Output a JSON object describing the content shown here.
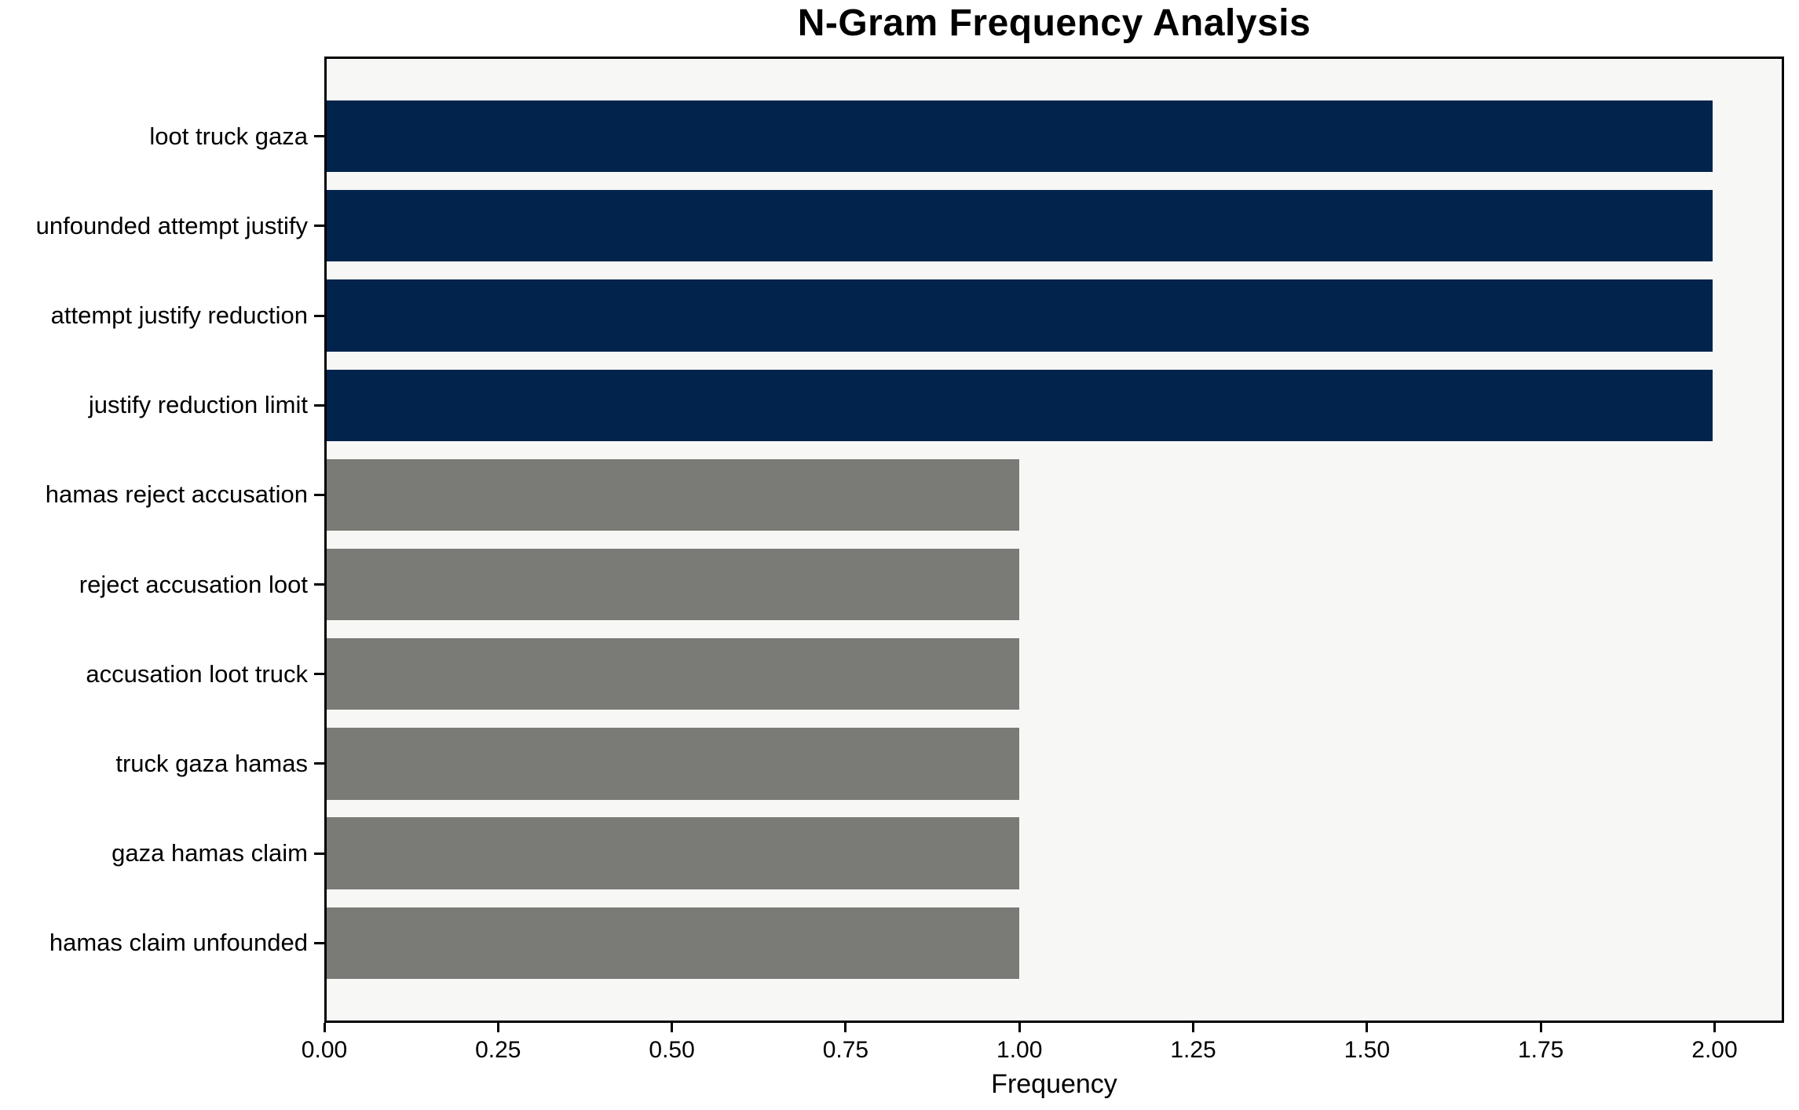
{
  "chart_data": {
    "type": "bar",
    "orientation": "horizontal",
    "title": "N-Gram Frequency Analysis",
    "xlabel": "Frequency",
    "ylabel": "",
    "categories": [
      "loot truck gaza",
      "unfounded attempt justify",
      "attempt justify reduction",
      "justify reduction limit",
      "hamas reject accusation",
      "reject accusation loot",
      "accusation loot truck",
      "truck gaza hamas",
      "gaza hamas claim",
      "hamas claim unfounded"
    ],
    "values": [
      2,
      2,
      2,
      2,
      1,
      1,
      1,
      1,
      1,
      1
    ],
    "bar_colors": [
      "#02234c",
      "#02234c",
      "#02234c",
      "#02234c",
      "#7a7a76",
      "#7a7a76",
      "#7a7a76",
      "#7a7a76",
      "#7a7a76",
      "#7a7a76"
    ],
    "xlim": [
      0,
      2.1
    ],
    "x_ticks": [
      {
        "value": 0.0,
        "label": "0.00"
      },
      {
        "value": 0.25,
        "label": "0.25"
      },
      {
        "value": 0.5,
        "label": "0.50"
      },
      {
        "value": 0.75,
        "label": "0.75"
      },
      {
        "value": 1.0,
        "label": "1.00"
      },
      {
        "value": 1.25,
        "label": "1.25"
      },
      {
        "value": 1.5,
        "label": "1.50"
      },
      {
        "value": 1.75,
        "label": "1.75"
      },
      {
        "value": 2.0,
        "label": "2.00"
      }
    ],
    "grid": false,
    "legend": null,
    "colors": {
      "bar_highlight": "#02234c",
      "bar_default": "#7a7a76",
      "plot_background": "#f7f7f6",
      "figure_background": "#ffffff",
      "text": "#000000"
    }
  }
}
